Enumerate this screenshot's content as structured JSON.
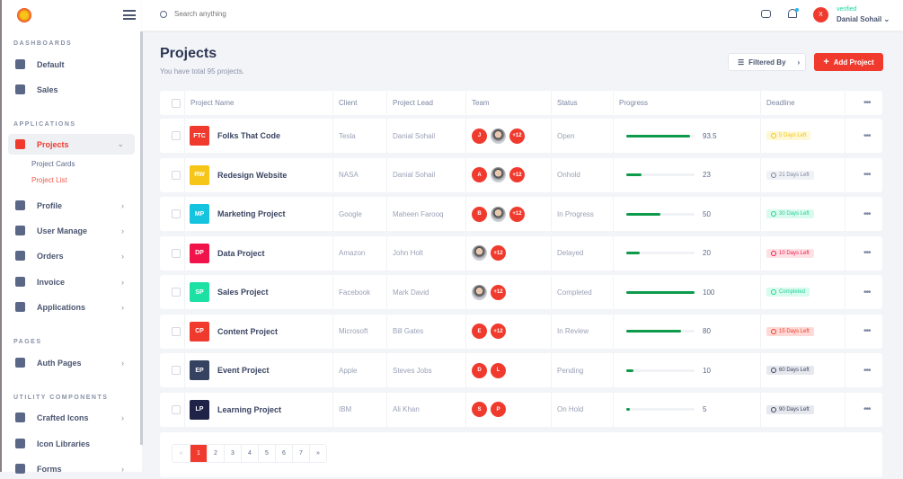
{
  "brand": {
    "logo": "colorful-circle-logo"
  },
  "sidebar": {
    "sections": [
      {
        "title": "DASHBOARDS",
        "items": [
          {
            "label": "Default",
            "icon": "cart-icon"
          },
          {
            "label": "Sales",
            "icon": "chart-pulse-icon"
          }
        ]
      },
      {
        "title": "APPLICATIONS",
        "items": [
          {
            "label": "Projects",
            "icon": "projects-icon",
            "active": true,
            "children": [
              "Project Cards",
              "Project List"
            ]
          },
          {
            "label": "Profile",
            "icon": "user-icon"
          },
          {
            "label": "User Manage",
            "icon": "users-icon"
          },
          {
            "label": "Orders",
            "icon": "card-icon"
          },
          {
            "label": "Invoice",
            "icon": "invoice-icon"
          },
          {
            "label": "Applications",
            "icon": "grid-icon"
          }
        ]
      },
      {
        "title": "PAGES",
        "items": [
          {
            "label": "Auth Pages",
            "icon": "auth-icon"
          }
        ]
      },
      {
        "title": "UTILITY COMPONENTS",
        "items": [
          {
            "label": "Crafted Icons",
            "icon": "icons-grid-icon"
          },
          {
            "label": "Icon Libraries",
            "icon": "dots-grid-icon"
          },
          {
            "label": "Forms",
            "icon": "forms-icon"
          }
        ]
      }
    ],
    "active_child": "Project List"
  },
  "topbar": {
    "search_placeholder": "Search anything",
    "user": {
      "initial": "X",
      "status": "verified",
      "name": "Danial Sohail"
    }
  },
  "page": {
    "title": "Projects",
    "subtitle": "You have total 95 projects.",
    "filter_label": "Filtered By",
    "add_label": "Add Project"
  },
  "table": {
    "columns": [
      "Project Name",
      "Client",
      "Project Lead",
      "Team",
      "Status",
      "Progress",
      "Deadline"
    ],
    "rows": [
      {
        "code": "FTC",
        "color": "#f03a2e",
        "name": "Folks That Code",
        "client": "Tesla",
        "lead": "Danial Sohail",
        "team": [
          "J",
          "photo",
          "+12"
        ],
        "status": "Open",
        "progress": "93.5",
        "deadline": "5 Days Left",
        "badge": "yellow"
      },
      {
        "code": "RW",
        "color": "#f5c518",
        "name": "Redesign Website",
        "client": "NASA",
        "lead": "Danial Sohail",
        "team": [
          "A",
          "photo",
          "+12"
        ],
        "status": "Onhold",
        "progress": "23",
        "deadline": "21 Days Left",
        "badge": "grey"
      },
      {
        "code": "MP",
        "color": "#14c3dd",
        "name": "Marketing Project",
        "client": "Google",
        "lead": "Maheen Farooq",
        "team": [
          "B",
          "photo",
          "+12"
        ],
        "status": "In Progress",
        "progress": "50",
        "deadline": "30 Days Left",
        "badge": "green"
      },
      {
        "code": "DP",
        "color": "#f0144b",
        "name": "Data Project",
        "client": "Amazon",
        "lead": "John Holt",
        "team": [
          "photo",
          "+12"
        ],
        "status": "Delayed",
        "progress": "20",
        "deadline": "10 Days Left",
        "badge": "red"
      },
      {
        "code": "SP",
        "color": "#1de1a4",
        "name": "Sales Project",
        "client": "Facebook",
        "lead": "Mark David",
        "team": [
          "photo",
          "+12"
        ],
        "status": "Completed",
        "progress": "100",
        "deadline": "Completed",
        "badge": "green"
      },
      {
        "code": "CP",
        "color": "#f03a2e",
        "name": "Content Project",
        "client": "Microsoft",
        "lead": "Bill Gates",
        "team": [
          "E",
          "+12"
        ],
        "status": "In Review",
        "progress": "80",
        "deadline": "15 Days Left",
        "badge": "lightred"
      },
      {
        "code": "EP",
        "color": "#354261",
        "name": "Event Project",
        "client": "Apple",
        "lead": "Steves Jobs",
        "team": [
          "D",
          "L"
        ],
        "status": "Pending",
        "progress": "10",
        "deadline": "60 Days Left",
        "badge": "darkgrey"
      },
      {
        "code": "LP",
        "color": "#1e2347",
        "name": "Learning Project",
        "client": "IBM",
        "lead": "Ali Khan",
        "team": [
          "S",
          "P"
        ],
        "status": "On Hold",
        "progress": "5",
        "deadline": "90 Days Left",
        "badge": "darkgrey"
      }
    ]
  },
  "pagination": {
    "prev": "«",
    "pages": [
      "1",
      "2",
      "3",
      "4",
      "5",
      "6",
      "7"
    ],
    "current": "1",
    "next": "»"
  },
  "badge_colors": {
    "yellow": [
      "#fff8d6",
      "#f0c419"
    ],
    "grey": [
      "#f1f2f6",
      "#7c86a2"
    ],
    "green": [
      "#d9fbee",
      "#1fd19a"
    ],
    "red": [
      "#ffe1e5",
      "#f0144b"
    ],
    "lightred": [
      "#ffd9d5",
      "#f03a2e"
    ],
    "darkgrey": [
      "#e6e8ee",
      "#3b4563"
    ]
  },
  "colors": {
    "accent": "#f03a2e",
    "progress": "#0d9a4b"
  }
}
